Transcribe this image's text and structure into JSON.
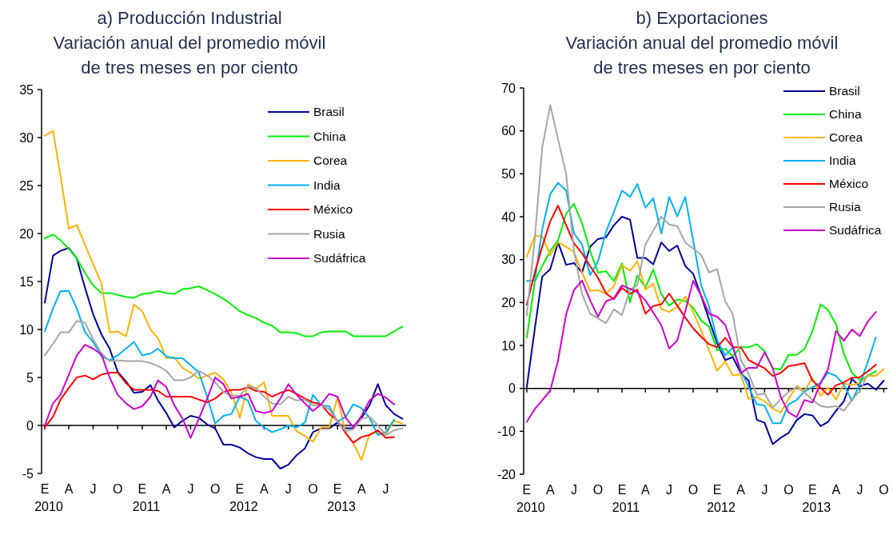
{
  "chart_data": [
    {
      "type": "line",
      "title": "a) Producción Industrial",
      "subtitle": "Variación anual del promedio móvil\nde tres meses en por ciento",
      "x": [
        "2010-01",
        "2010-02",
        "2010-03",
        "2010-04",
        "2010-05",
        "2010-06",
        "2010-07",
        "2010-08",
        "2010-09",
        "2010-10",
        "2010-11",
        "2010-12",
        "2011-01",
        "2011-02",
        "2011-03",
        "2011-04",
        "2011-05",
        "2011-06",
        "2011-07",
        "2011-08",
        "2011-09",
        "2011-10",
        "2011-11",
        "2011-12",
        "2012-01",
        "2012-02",
        "2012-03",
        "2012-04",
        "2012-05",
        "2012-06",
        "2012-07",
        "2012-08",
        "2012-09",
        "2012-10",
        "2012-11",
        "2012-12",
        "2013-01",
        "2013-02",
        "2013-03",
        "2013-04",
        "2013-05",
        "2013-06",
        "2013-07",
        "2013-08",
        "2013-09"
      ],
      "series": [
        {
          "name": "Brasil",
          "color": "#000099",
          "values": [
            12.8,
            17.7,
            18.2,
            18.5,
            17.4,
            14.3,
            11.6,
            9.5,
            8.0,
            5.6,
            4.6,
            3.4,
            3.5,
            4.2,
            2.6,
            1.3,
            -0.2,
            0.5,
            1.0,
            0.8,
            0.1,
            -0.3,
            -2.0,
            -2.0,
            -2.3,
            -2.9,
            -3.3,
            -3.5,
            -3.5,
            -4.5,
            -4.1,
            -3.1,
            -2.4,
            -0.7,
            -0.3,
            -0.3,
            0.3,
            -0.3,
            -0.3,
            0.8,
            2.1,
            4.3,
            2.1,
            1.2,
            0.7
          ]
        },
        {
          "name": "China",
          "color": "#00ee00",
          "values": [
            19.5,
            19.9,
            19.3,
            18.4,
            17.4,
            15.9,
            14.6,
            13.8,
            13.8,
            13.6,
            13.4,
            13.3,
            13.7,
            13.8,
            14.0,
            13.8,
            13.7,
            14.2,
            14.3,
            14.5,
            14.1,
            13.7,
            13.2,
            12.6,
            11.9,
            11.5,
            11.2,
            10.7,
            10.4,
            9.7,
            9.7,
            9.6,
            9.3,
            9.3,
            9.7,
            9.8,
            9.8,
            9.8,
            9.3,
            9.3,
            9.3,
            9.3,
            9.3,
            9.8,
            10.3
          ]
        },
        {
          "name": "Corea",
          "color": "#ffb300",
          "values": [
            30.2,
            30.7,
            26.0,
            20.5,
            20.9,
            18.8,
            16.8,
            14.8,
            9.7,
            9.8,
            9.3,
            12.6,
            11.9,
            10.0,
            9.1,
            7.0,
            7.1,
            6.0,
            5.5,
            4.9,
            5.2,
            5.5,
            4.8,
            3.4,
            0.8,
            4.3,
            3.8,
            4.5,
            1.0,
            1.0,
            1.0,
            -0.6,
            -1.1,
            -1.7,
            -0.2,
            -0.2,
            2.9,
            -0.8,
            -1.8,
            -3.6,
            -0.9,
            -0.7,
            -1.0,
            0.5,
            0.2
          ]
        },
        {
          "name": "India",
          "color": "#00b0f0",
          "values": [
            9.8,
            12.2,
            14.0,
            14.0,
            12.2,
            9.7,
            8.7,
            7.2,
            6.8,
            7.3,
            8.0,
            8.7,
            7.3,
            7.5,
            8.0,
            7.2,
            7.0,
            7.0,
            6.3,
            5.5,
            3.0,
            0.2,
            1.0,
            1.2,
            3.0,
            2.6,
            0.5,
            -0.2,
            -0.7,
            -0.4,
            0.0,
            -0.2,
            0.3,
            3.2,
            2.1,
            2.0,
            0.4,
            0.9,
            2.2,
            1.8,
            0.8,
            -1.0,
            -0.7,
            0.6,
            null
          ]
        },
        {
          "name": "México",
          "color": "#ff0000",
          "values": [
            -0.2,
            0.9,
            2.7,
            3.9,
            5.0,
            5.2,
            4.8,
            5.3,
            5.5,
            5.5,
            4.4,
            3.7,
            3.7,
            3.7,
            3.6,
            3.0,
            3.0,
            3.0,
            3.0,
            2.7,
            2.4,
            2.8,
            3.5,
            3.7,
            3.7,
            4.0,
            3.6,
            3.5,
            3.0,
            3.4,
            3.7,
            3.3,
            2.8,
            2.4,
            2.2,
            1.2,
            0.5,
            -0.8,
            -1.8,
            -1.2,
            -1.0,
            -0.5,
            -1.3,
            -1.2,
            null
          ]
        },
        {
          "name": "Rusia",
          "color": "#a6a6a6",
          "values": [
            7.3,
            8.5,
            9.7,
            9.7,
            10.9,
            10.7,
            9.0,
            7.5,
            6.7,
            6.8,
            6.7,
            6.7,
            6.7,
            6.5,
            6.2,
            5.7,
            4.7,
            4.7,
            5.0,
            5.7,
            5.2,
            4.5,
            3.5,
            3.1,
            3.1,
            4.1,
            3.9,
            3.0,
            2.3,
            2.2,
            3.0,
            2.6,
            2.7,
            2.1,
            2.1,
            1.7,
            0.4,
            -0.6,
            -0.4,
            0.7,
            0.9,
            0.0,
            -1.0,
            -0.5,
            -0.3
          ]
        },
        {
          "name": "Sudáfrica",
          "color": "#cc00cc",
          "values": [
            0.0,
            2.3,
            3.2,
            5.3,
            7.3,
            8.4,
            8.0,
            7.4,
            5.0,
            3.2,
            2.3,
            1.7,
            2.0,
            3.0,
            4.7,
            4.0,
            2.1,
            0.7,
            -1.3,
            0.7,
            2.8,
            5.0,
            4.3,
            2.8,
            3.0,
            3.3,
            1.5,
            1.3,
            1.5,
            2.8,
            4.3,
            3.2,
            2.3,
            1.5,
            2.2,
            3.3,
            3.0,
            0.8,
            -0.2,
            1.0,
            2.6,
            3.3,
            2.9,
            2.2,
            null
          ]
        }
      ],
      "xlim": [
        "2009-12-20",
        "2013-09-15"
      ],
      "xticks": [
        {
          "value": "2010-01",
          "label": "E\n2010"
        },
        {
          "value": "2010-04",
          "label": "A"
        },
        {
          "value": "2010-07",
          "label": "J"
        },
        {
          "value": "2010-10",
          "label": "O"
        },
        {
          "value": "2011-01",
          "label": "E\n2011"
        },
        {
          "value": "2011-04",
          "label": "A"
        },
        {
          "value": "2011-07",
          "label": "J"
        },
        {
          "value": "2011-10",
          "label": "O"
        },
        {
          "value": "2012-01",
          "label": "E\n2012"
        },
        {
          "value": "2012-04",
          "label": "A"
        },
        {
          "value": "2012-07",
          "label": "J"
        },
        {
          "value": "2012-10",
          "label": "O"
        },
        {
          "value": "2013-01",
          "label": "E\n2013"
        },
        {
          "value": "2013-04",
          "label": "A"
        },
        {
          "value": "2013-07",
          "label": "J"
        }
      ],
      "ylim": [
        -5,
        35
      ],
      "yticks": [
        -5,
        0,
        5,
        10,
        15,
        20,
        25,
        30,
        35
      ],
      "legend": "top right",
      "marker": "none",
      "line_style": "solid"
    },
    {
      "type": "line",
      "title": "b) Exportaciones",
      "subtitle": "Variación anual del promedio móvil\nde tres meses en por ciento",
      "x": [
        "2010-01",
        "2010-02",
        "2010-03",
        "2010-04",
        "2010-05",
        "2010-06",
        "2010-07",
        "2010-08",
        "2010-09",
        "2010-10",
        "2010-11",
        "2010-12",
        "2011-01",
        "2011-02",
        "2011-03",
        "2011-04",
        "2011-05",
        "2011-06",
        "2011-07",
        "2011-08",
        "2011-09",
        "2011-10",
        "2011-11",
        "2011-12",
        "2012-01",
        "2012-02",
        "2012-03",
        "2012-04",
        "2012-05",
        "2012-06",
        "2012-07",
        "2012-08",
        "2012-09",
        "2012-10",
        "2012-11",
        "2012-12",
        "2013-01",
        "2013-02",
        "2013-03",
        "2013-04",
        "2013-05",
        "2013-06",
        "2013-07",
        "2013-08",
        "2013-09",
        "2013-10"
      ],
      "series": [
        {
          "name": "Brasil",
          "color": "#000099",
          "values": [
            0.3,
            14,
            26,
            27.8,
            34,
            28.8,
            29.2,
            27,
            33,
            34.8,
            35.2,
            38,
            40,
            39.3,
            30.4,
            30.4,
            28.9,
            34,
            32,
            33.3,
            28.5,
            26.7,
            21.5,
            16,
            10.5,
            6.6,
            7.3,
            3.5,
            1.8,
            -7.3,
            -8,
            -13,
            -11.5,
            -10.4,
            -7.4,
            -6,
            -6.3,
            -8.8,
            -7.8,
            -5.2,
            -3,
            2.2,
            0.5,
            1.1,
            -0.3,
            1.8
          ]
        },
        {
          "name": "China",
          "color": "#00ee00",
          "values": [
            11.8,
            25,
            28.5,
            32,
            34.5,
            40.7,
            43,
            38.5,
            32,
            27,
            27.3,
            25,
            29.1,
            20,
            26.3,
            23.5,
            27.7,
            22,
            19.3,
            20.7,
            20.4,
            18.8,
            15.8,
            14.4,
            8.9,
            9.2,
            7.5,
            9.6,
            9.6,
            10.3,
            8.7,
            4.7,
            4.4,
            7.8,
            7.8,
            9.2,
            13.4,
            19.6,
            18.3,
            14.9,
            8.1,
            3.6,
            2.0,
            2.9,
            4.0,
            null
          ]
        },
        {
          "name": "Corea",
          "color": "#ffb300",
          "values": [
            30.7,
            35.5,
            35.5,
            31,
            34,
            33,
            31.8,
            27,
            22.7,
            22.9,
            22.1,
            23.8,
            28.7,
            27.4,
            29.6,
            23,
            24.4,
            18.5,
            17.8,
            19,
            21.4,
            17.8,
            13.5,
            9,
            4.1,
            6.3,
            3,
            3.3,
            -2.5,
            -2,
            -3,
            -4.7,
            -5.6,
            -2.5,
            0.6,
            -0.6,
            2.4,
            -1.8,
            0.2,
            -2.6,
            1.1,
            0.8,
            1.3,
            2.9,
            2.9,
            4.5
          ]
        },
        {
          "name": "India",
          "color": "#00b0f0",
          "values": [
            25,
            25.2,
            37,
            45.3,
            47.9,
            46.1,
            36.1,
            33.5,
            26.4,
            29.5,
            36.5,
            41.1,
            46.1,
            44.6,
            47.6,
            42.1,
            44.3,
            36.1,
            44.6,
            40.1,
            44.6,
            34.5,
            24,
            19.1,
            11.2,
            7.7,
            9.5,
            4.2,
            0.3,
            -3.7,
            -4,
            -8.1,
            -8.1,
            -3.7,
            -2.7,
            -0.7,
            0.3,
            1.3,
            3.7,
            2.9,
            0.9,
            -2.9,
            0.9,
            6.2,
            11.9,
            null
          ]
        },
        {
          "name": "México",
          "color": "#ff0000",
          "values": [
            19.5,
            27,
            33,
            38.9,
            42.6,
            38,
            33.8,
            31.5,
            28.5,
            25.8,
            22.1,
            20.8,
            23.4,
            22,
            23,
            17.4,
            19.2,
            19.6,
            22.1,
            19.3,
            16.5,
            14,
            12,
            10.3,
            9.6,
            11.8,
            9.6,
            9.6,
            6.6,
            5.6,
            4.7,
            2.9,
            3.6,
            5.2,
            5.5,
            5.9,
            1.8,
            0.1,
            -1.5,
            0.7,
            1.4,
            2.5,
            2.6,
            4.0,
            5.5,
            null
          ]
        },
        {
          "name": "Rusia",
          "color": "#a6a6a6",
          "values": [
            17,
            35,
            56,
            66,
            58,
            50,
            32,
            22,
            17.4,
            16.3,
            15.2,
            18.4,
            17.1,
            23,
            24,
            33.5,
            36.8,
            40,
            38.2,
            37.8,
            34,
            32.6,
            31.1,
            27,
            27.8,
            20.3,
            17.3,
            6.6,
            3.4,
            -1.5,
            -1.2,
            -4.5,
            -2.5,
            -0.8,
            0.3,
            -0.9,
            -2.7,
            -4.1,
            -4.4,
            -4.1,
            -5.2,
            -2.7,
            -0.6,
            3.3,
            null,
            null
          ]
        },
        {
          "name": "Sudáfrica",
          "color": "#cc00cc",
          "values": [
            -7.8,
            -4.8,
            -2.8,
            -0.5,
            6.5,
            17.3,
            22.9,
            25.1,
            20.5,
            16.7,
            20.3,
            21,
            24,
            23.2,
            22.4,
            20.5,
            17.7,
            14.7,
            9.3,
            11.1,
            18,
            25.1,
            21.6,
            17.4,
            16.7,
            14.8,
            9.8,
            3.6,
            4.8,
            4.8,
            8.4,
            4.8,
            -2,
            -5.6,
            -6.7,
            -2.7,
            -3.3,
            1.3,
            4.4,
            13.4,
            11.1,
            13.7,
            12.2,
            15.6,
            17.8,
            null
          ]
        }
      ],
      "xlim": [
        "2009-12-20",
        "2013-10-15"
      ],
      "xticks": [
        {
          "value": "2010-01",
          "label": "E\n2010"
        },
        {
          "value": "2010-04",
          "label": "A"
        },
        {
          "value": "2010-07",
          "label": "J"
        },
        {
          "value": "2010-10",
          "label": "O"
        },
        {
          "value": "2011-01",
          "label": "E\n2011"
        },
        {
          "value": "2011-04",
          "label": "A"
        },
        {
          "value": "2011-07",
          "label": "J"
        },
        {
          "value": "2011-10",
          "label": "O"
        },
        {
          "value": "2012-01",
          "label": "E\n2012"
        },
        {
          "value": "2012-04",
          "label": "A"
        },
        {
          "value": "2012-07",
          "label": "J"
        },
        {
          "value": "2012-10",
          "label": "O"
        },
        {
          "value": "2013-01",
          "label": "E\n2013"
        },
        {
          "value": "2013-04",
          "label": "A"
        },
        {
          "value": "2013-07",
          "label": "J"
        },
        {
          "value": "2013-10",
          "label": "O"
        }
      ],
      "ylim": [
        -20,
        70
      ],
      "yticks": [
        -20,
        -10,
        0,
        10,
        20,
        30,
        40,
        50,
        60,
        70
      ],
      "legend": "top right",
      "marker": "none",
      "line_style": "solid"
    }
  ]
}
